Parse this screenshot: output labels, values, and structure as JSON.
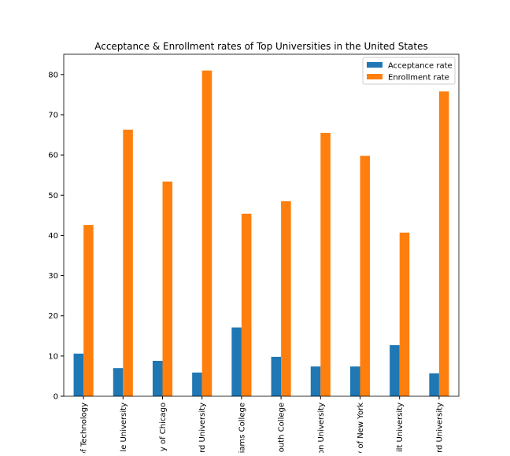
{
  "chart_data": {
    "type": "bar",
    "title": "Acceptance & Enrollment rates of Top Universities in the United States",
    "categories": [
      "of Technology",
      "le University",
      "y of Chicago",
      "rd University",
      "iams College",
      "outh College",
      "on University",
      "y of New York",
      "ilt University",
      "rd University"
    ],
    "series": [
      {
        "name": "Acceptance rate",
        "color": "#1f77b4",
        "values": [
          10.6,
          7.0,
          8.8,
          5.9,
          17.1,
          9.8,
          7.4,
          7.4,
          12.7,
          5.7
        ]
      },
      {
        "name": "Enrollment rate",
        "color": "#ff7f0e",
        "values": [
          42.6,
          66.3,
          53.4,
          81.0,
          45.4,
          48.5,
          65.5,
          59.8,
          40.7,
          75.8
        ]
      }
    ],
    "ylim": [
      0,
      85.05
    ],
    "yticks": [
      0,
      10,
      20,
      30,
      40,
      50,
      60,
      70,
      80
    ],
    "legend": "upper right"
  }
}
